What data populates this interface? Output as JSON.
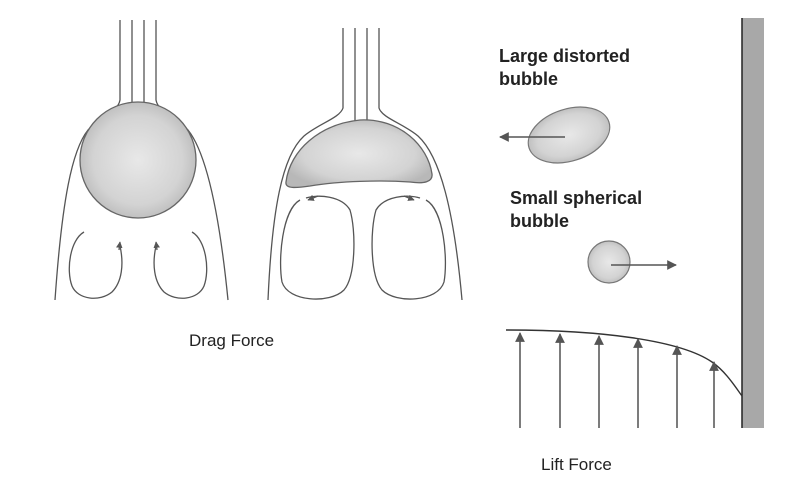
{
  "drag_panel": {
    "caption": "Drag Force"
  },
  "lift_panel": {
    "caption": "Lift Force",
    "large_bubble": {
      "label_line1": "Large distorted",
      "label_line2": "bubble"
    },
    "small_bubble": {
      "label_line1": "Small spherical",
      "label_line2": "bubble"
    }
  },
  "colors": {
    "line": "#555555",
    "bubble_fill": "#d2d2d2",
    "wall": "#a8a8a8"
  }
}
